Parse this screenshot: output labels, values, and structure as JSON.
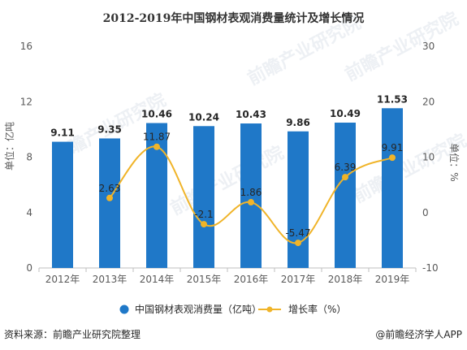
{
  "chart_data": {
    "type": "bar",
    "title": "2012-2019年中国钢材表观消费量统计及增长情况",
    "categories": [
      "2012年",
      "2013年",
      "2014年",
      "2015年",
      "2016年",
      "2017年",
      "2018年",
      "2019年"
    ],
    "series": [
      {
        "name": "中国钢材表观消费量（亿吨）",
        "type": "bar",
        "axis": "left",
        "values": [
          9.11,
          9.35,
          10.46,
          10.24,
          10.43,
          9.86,
          10.49,
          11.53
        ],
        "labels": [
          "9.11",
          "9.35",
          "10.46",
          "10.24",
          "10.43",
          "9.86",
          "10.49",
          "11.53"
        ]
      },
      {
        "name": "增长率（%）",
        "type": "line",
        "axis": "right",
        "values": [
          null,
          2.63,
          11.87,
          -2.1,
          1.86,
          -5.47,
          6.39,
          9.91
        ],
        "labels": [
          "",
          "2.63",
          "11.87",
          "-2.1",
          "1.86",
          "-5.47",
          "6.39",
          "9.91"
        ]
      }
    ],
    "ylabel": "单位：亿吨",
    "y2label": "单位：%",
    "ylim": [
      0,
      16
    ],
    "yticks": [
      "0",
      "4",
      "8",
      "12",
      "16"
    ],
    "y2lim": [
      -10,
      30
    ],
    "y2ticks": [
      "-10",
      "0",
      "10",
      "20",
      "30"
    ],
    "grid": false,
    "legend_position": "bottom",
    "colors": {
      "bar": "#1f78c8",
      "line": "#f0b429"
    }
  },
  "watermark": "前瞻产业研究院",
  "footer": {
    "source": "资料来源：前瞻产业研究院整理",
    "brand": "@前瞻经济学人APP"
  }
}
